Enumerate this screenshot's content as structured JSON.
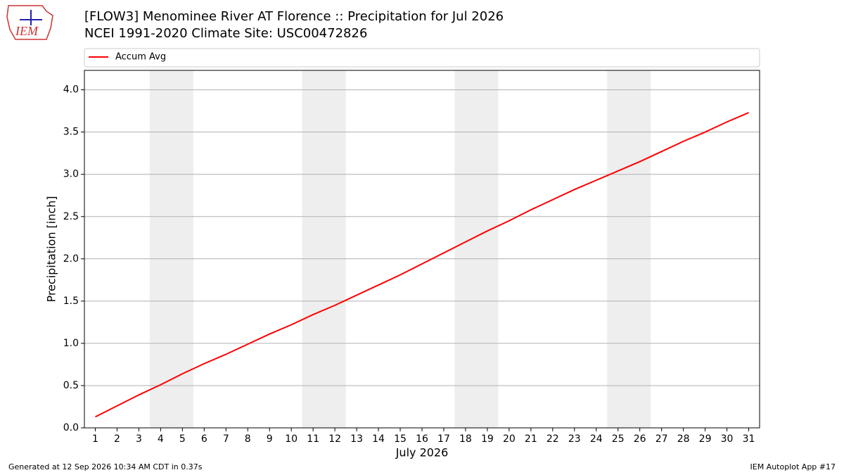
{
  "logo_text": "IEM",
  "footer_left": "Generated at 12 Sep 2026 10:34 AM CDT in 0.37s",
  "footer_right": "IEM Autoplot App #17",
  "chart_data": {
    "type": "line",
    "title": "[FLOW3] Menominee River  AT Florence :: Precipitation for Jul 2026",
    "subtitle": "NCEI 1991-2020 Climate Site: USC00472826",
    "x_label": "July 2026",
    "y_label": "Precipitation [inch]",
    "x": [
      1,
      2,
      3,
      4,
      5,
      6,
      7,
      8,
      9,
      10,
      11,
      12,
      13,
      14,
      15,
      16,
      17,
      18,
      19,
      20,
      21,
      22,
      23,
      24,
      25,
      26,
      27,
      28,
      29,
      30,
      31
    ],
    "series": [
      {
        "name": "Accum Avg",
        "color": "#ff0000",
        "values": [
          0.13,
          0.26,
          0.39,
          0.51,
          0.64,
          0.76,
          0.87,
          0.99,
          1.11,
          1.22,
          1.34,
          1.45,
          1.57,
          1.69,
          1.81,
          1.94,
          2.07,
          2.2,
          2.33,
          2.45,
          2.58,
          2.7,
          2.82,
          2.93,
          3.04,
          3.15,
          3.27,
          3.39,
          3.5,
          3.62,
          3.73
        ]
      }
    ],
    "xlim": [
      0.5,
      31.5
    ],
    "xticks": [
      1,
      2,
      3,
      4,
      5,
      6,
      7,
      8,
      9,
      10,
      11,
      12,
      13,
      14,
      15,
      16,
      17,
      18,
      19,
      20,
      21,
      22,
      23,
      24,
      25,
      26,
      27,
      28,
      29,
      30,
      31
    ],
    "ylim": [
      0,
      4.23
    ],
    "yticks": [
      {
        "value": 0,
        "label": "0.0"
      },
      0.5,
      {
        "value": 1,
        "label": "1.0"
      },
      1.5,
      {
        "value": 2,
        "label": "2.0"
      },
      2.5,
      {
        "value": 3,
        "label": "3.0"
      },
      3.5,
      {
        "value": 4,
        "label": "4.0"
      }
    ],
    "grid": "y",
    "shaded_spans": [
      [
        3.5,
        5.5
      ],
      [
        10.5,
        12.5
      ],
      [
        17.5,
        19.5
      ],
      [
        24.5,
        26.5
      ]
    ],
    "shade_color": "#eeeeee",
    "legend": "top"
  }
}
